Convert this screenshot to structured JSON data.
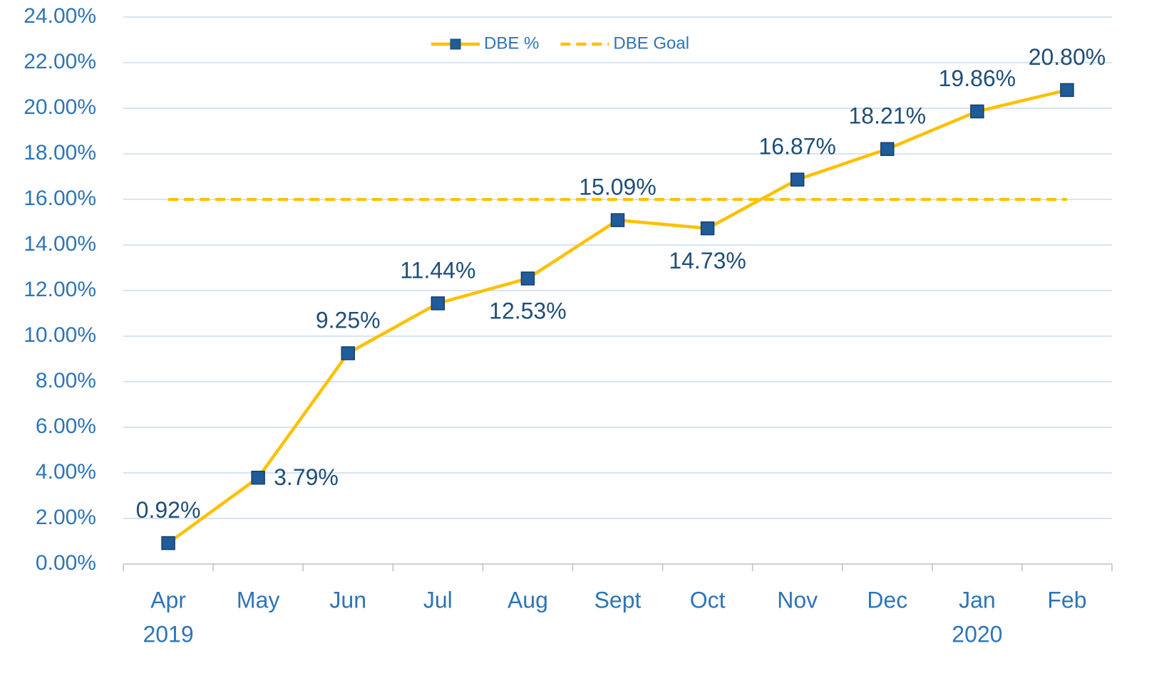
{
  "chart_data": {
    "type": "line",
    "categories": [
      [
        "Apr",
        "2019"
      ],
      [
        "May"
      ],
      [
        "Jun"
      ],
      [
        "Jul"
      ],
      [
        "Aug"
      ],
      [
        "Sept"
      ],
      [
        "Oct"
      ],
      [
        "Nov"
      ],
      [
        "Dec"
      ],
      [
        "Jan",
        "2020"
      ],
      [
        "Feb"
      ]
    ],
    "series": [
      {
        "name": "DBE %",
        "color": "#ffc000",
        "marker_color": "#1f5c99",
        "marker": "square",
        "values": [
          0.92,
          3.79,
          9.25,
          11.44,
          12.53,
          15.09,
          14.73,
          16.87,
          18.21,
          19.86,
          20.8
        ],
        "value_labels": [
          "0.92%",
          "3.79%",
          "9.25%",
          "11.44%",
          "12.53%",
          "15.09%",
          "14.73%",
          "16.87%",
          "18.21%",
          "19.86%",
          "20.80%"
        ]
      },
      {
        "name": "DBE Goal",
        "color": "#ffc000",
        "dashed": true,
        "values": [
          16,
          16,
          16,
          16,
          16,
          16,
          16,
          16,
          16,
          16,
          16
        ]
      }
    ],
    "ylim": [
      0,
      24
    ],
    "yticks": [
      {
        "value": 0,
        "label": "0.00%"
      },
      {
        "value": 2,
        "label": "2.00%"
      },
      {
        "value": 4,
        "label": "4.00%"
      },
      {
        "value": 6,
        "label": "6.00%"
      },
      {
        "value": 8,
        "label": "8.00%"
      },
      {
        "value": 10,
        "label": "10.00%"
      },
      {
        "value": 12,
        "label": "12.00%"
      },
      {
        "value": 14,
        "label": "14.00%"
      },
      {
        "value": 16,
        "label": "16.00%"
      },
      {
        "value": 18,
        "label": "18.00%"
      },
      {
        "value": 20,
        "label": "20.00%"
      },
      {
        "value": 22,
        "label": "22.00%"
      },
      {
        "value": 24,
        "label": "24.00%"
      }
    ],
    "grid": true,
    "legend": "top"
  }
}
